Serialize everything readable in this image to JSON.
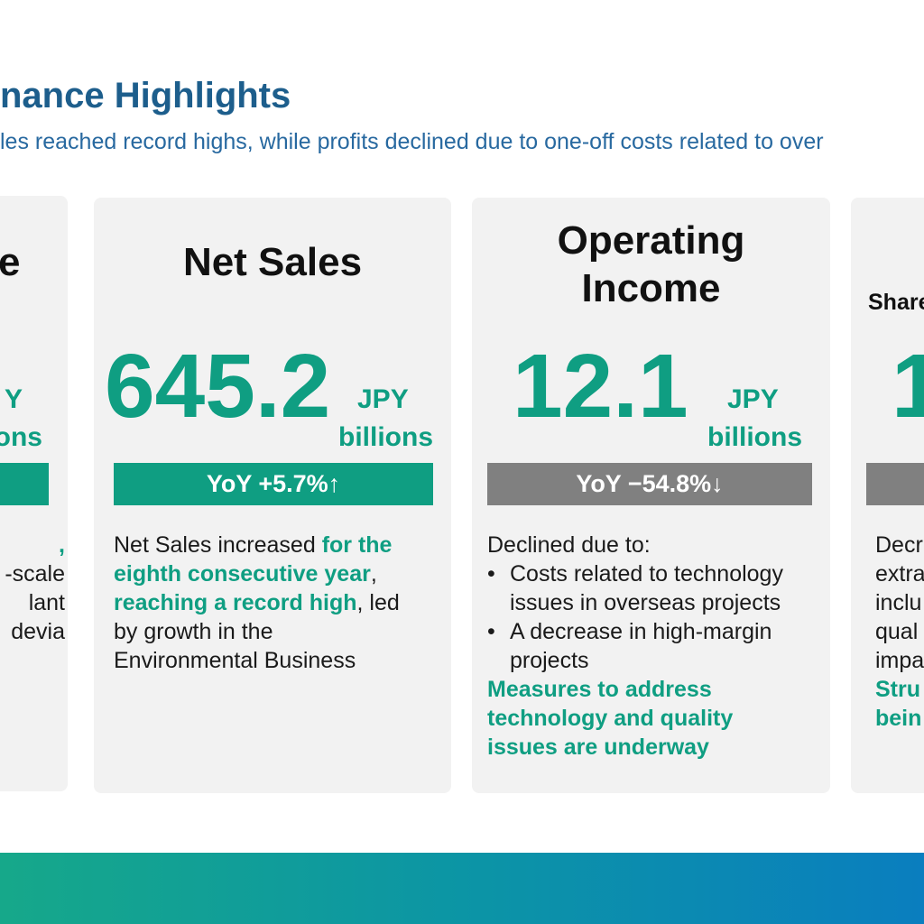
{
  "header": {
    "title": "nance Highlights",
    "subtitle": "les reached record highs, while profits declined due to one-off costs related to over"
  },
  "cards": [
    {
      "title": "e",
      "unit": [
        "Y",
        "ons"
      ],
      "body": [
        {
          "segments": [
            {
              "text": ",",
              "accent": true
            }
          ]
        },
        {
          "segments": [
            {
              "text": "-scale",
              "accent": false
            }
          ]
        },
        {
          "segments": [
            {
              "text": "lant",
              "accent": false
            }
          ]
        },
        {
          "segments": [
            {
              "text": "devia",
              "accent": false
            }
          ]
        }
      ]
    },
    {
      "title": [
        "Net Sales"
      ],
      "value": "645.2",
      "unit": [
        "JPY",
        "billions"
      ],
      "yoy": "YoY +5.7%↑",
      "trend": "up",
      "body": [
        {
          "segments": [
            {
              "text": "Net Sales increased ",
              "accent": false
            },
            {
              "text": "for the",
              "accent": true
            }
          ]
        },
        {
          "segments": [
            {
              "text": "eighth consecutive year",
              "accent": true
            },
            {
              "text": ",",
              "accent": false
            }
          ]
        },
        {
          "segments": [
            {
              "text": "reaching a record high",
              "accent": true
            },
            {
              "text": ", led",
              "accent": false
            }
          ]
        },
        {
          "segments": [
            {
              "text": "by growth in the",
              "accent": false
            }
          ]
        },
        {
          "segments": [
            {
              "text": "Environmental Business",
              "accent": false
            }
          ]
        }
      ]
    },
    {
      "title": [
        "Operating",
        "Income"
      ],
      "value": "12.1",
      "unit": [
        "JPY",
        "billions"
      ],
      "yoy": "YoY −54.8%↓",
      "trend": "down",
      "body": [
        {
          "segments": [
            {
              "text": "Declined due to:",
              "accent": false
            }
          ]
        },
        {
          "bullet": "•",
          "segments": [
            {
              "text": "Costs related to technology",
              "accent": false
            }
          ]
        },
        {
          "indent": true,
          "segments": [
            {
              "text": "issues in overseas projects",
              "accent": false
            }
          ]
        },
        {
          "bullet": "•",
          "segments": [
            {
              "text": "A decrease in high-margin",
              "accent": false
            }
          ]
        },
        {
          "indent": true,
          "segments": [
            {
              "text": "projects",
              "accent": false
            }
          ]
        },
        {
          "segments": [
            {
              "text": "Measures to address",
              "accent": true
            }
          ]
        },
        {
          "segments": [
            {
              "text": "technology and quality",
              "accent": true
            }
          ]
        },
        {
          "segments": [
            {
              "text": "issues are underway",
              "accent": true
            }
          ]
        }
      ]
    },
    {
      "title": "Share",
      "value": "1",
      "body": [
        {
          "segments": [
            {
              "text": "Decr",
              "accent": false
            }
          ]
        },
        {
          "segments": [
            {
              "text": "extra",
              "accent": false
            }
          ]
        },
        {
          "segments": [
            {
              "text": "inclu",
              "accent": false
            }
          ]
        },
        {
          "segments": [
            {
              "text": "qual",
              "accent": false
            }
          ]
        },
        {
          "segments": [
            {
              "text": "impa",
              "accent": false
            }
          ]
        },
        {
          "segments": [
            {
              "text": "Stru",
              "accent": true
            }
          ]
        },
        {
          "segments": [
            {
              "text": "bein",
              "accent": true
            }
          ]
        }
      ]
    }
  ]
}
